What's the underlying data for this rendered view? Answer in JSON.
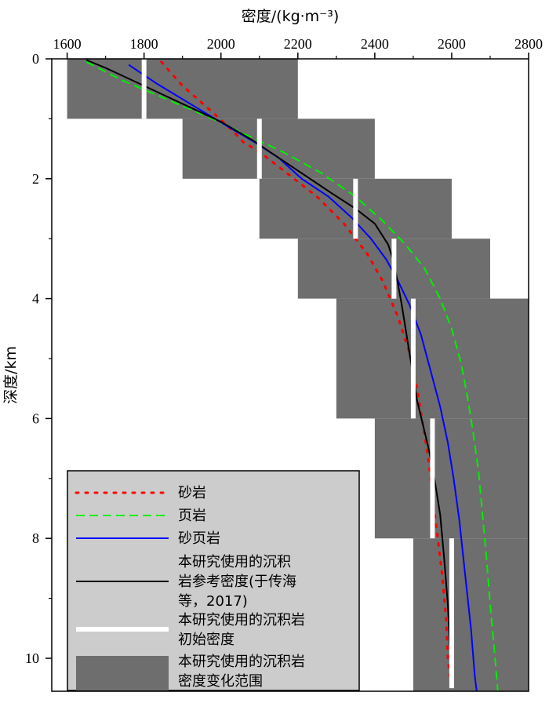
{
  "chart_data": {
    "type": "line",
    "title": "",
    "xlabel": "密度/(kg·m⁻³)",
    "ylabel": "深度/km",
    "xlim": [
      1560,
      2800
    ],
    "ylim": [
      0,
      10.55
    ],
    "x_ticks": [
      1600,
      1800,
      2000,
      2200,
      2400,
      2600,
      2800
    ],
    "y_ticks": [
      0,
      2,
      4,
      6,
      8,
      10
    ],
    "x_axis_position": "top",
    "legend_position": "bottom-left",
    "colors": {
      "sandstone": "#ff0000",
      "shale": "#00ee00",
      "sandy_shale": "#0000ff",
      "reference": "#000000",
      "initial_density": "#ffffff",
      "range_fill": "#6e6e6e",
      "legend_bg": "#cccccc"
    },
    "series": [
      {
        "name": "砂岩",
        "key": "sandstone",
        "style": "dotted",
        "points": [
          [
            1845,
            0.05
          ],
          [
            1900,
            0.45
          ],
          [
            1980,
            0.9
          ],
          [
            2030,
            1.2
          ],
          [
            2060,
            1.4
          ],
          [
            2100,
            1.55
          ],
          [
            2160,
            1.85
          ],
          [
            2250,
            2.3
          ],
          [
            2320,
            2.75
          ],
          [
            2380,
            3.25
          ],
          [
            2420,
            3.7
          ],
          [
            2460,
            4.3
          ],
          [
            2490,
            4.9
          ],
          [
            2510,
            5.5
          ],
          [
            2525,
            6.1
          ],
          [
            2540,
            6.7
          ],
          [
            2550,
            7.3
          ],
          [
            2560,
            7.8
          ],
          [
            2575,
            8.6
          ],
          [
            2585,
            9.3
          ],
          [
            2590,
            10.0
          ],
          [
            2595,
            10.3
          ]
        ]
      },
      {
        "name": "页岩",
        "key": "shale",
        "style": "dashed",
        "points": [
          [
            1650,
            0.05
          ],
          [
            1740,
            0.35
          ],
          [
            1850,
            0.65
          ],
          [
            1960,
            0.95
          ],
          [
            2060,
            1.25
          ],
          [
            2160,
            1.55
          ],
          [
            2260,
            1.9
          ],
          [
            2350,
            2.3
          ],
          [
            2420,
            2.7
          ],
          [
            2480,
            3.1
          ],
          [
            2530,
            3.5
          ],
          [
            2570,
            4.0
          ],
          [
            2600,
            4.5
          ],
          [
            2625,
            5.1
          ],
          [
            2640,
            5.6
          ],
          [
            2655,
            6.2
          ],
          [
            2670,
            6.9
          ],
          [
            2680,
            7.6
          ],
          [
            2690,
            8.3
          ],
          [
            2700,
            9.1
          ],
          [
            2710,
            9.8
          ],
          [
            2720,
            10.55
          ]
        ]
      },
      {
        "name": "砂页岩",
        "key": "sandy_shale",
        "style": "solid",
        "points": [
          [
            1760,
            0.1
          ],
          [
            1830,
            0.4
          ],
          [
            1920,
            0.75
          ],
          [
            2010,
            1.1
          ],
          [
            2090,
            1.4
          ],
          [
            2150,
            1.65
          ],
          [
            2210,
            2.0
          ],
          [
            2280,
            2.3
          ],
          [
            2340,
            2.65
          ],
          [
            2390,
            3.0
          ],
          [
            2430,
            3.35
          ],
          [
            2460,
            3.7
          ],
          [
            2490,
            4.1
          ],
          [
            2520,
            4.6
          ],
          [
            2545,
            5.2
          ],
          [
            2570,
            5.8
          ],
          [
            2590,
            6.4
          ],
          [
            2605,
            7.0
          ],
          [
            2620,
            7.7
          ],
          [
            2630,
            8.3
          ],
          [
            2640,
            8.9
          ],
          [
            2650,
            9.5
          ],
          [
            2660,
            10.3
          ],
          [
            2665,
            10.55
          ]
        ]
      },
      {
        "name": "本研究使用的沉积岩参考密度(于传海等，2017)",
        "key": "reference",
        "style": "solid",
        "points": [
          [
            1650,
            0.02
          ],
          [
            1700,
            0.15
          ],
          [
            1800,
            0.45
          ],
          [
            1900,
            0.75
          ],
          [
            2000,
            1.05
          ],
          [
            2080,
            1.35
          ],
          [
            2150,
            1.65
          ],
          [
            2220,
            1.95
          ],
          [
            2290,
            2.25
          ],
          [
            2350,
            2.5
          ],
          [
            2400,
            2.75
          ],
          [
            2420,
            2.95
          ],
          [
            2435,
            3.1
          ],
          [
            2450,
            3.4
          ],
          [
            2460,
            3.75
          ],
          [
            2470,
            4.1
          ],
          [
            2480,
            4.5
          ],
          [
            2490,
            4.9
          ],
          [
            2500,
            5.3
          ],
          [
            2510,
            5.7
          ],
          [
            2525,
            6.1
          ],
          [
            2540,
            6.5
          ],
          [
            2555,
            7.0
          ],
          [
            2570,
            7.6
          ],
          [
            2580,
            8.3
          ],
          [
            2590,
            9.1
          ],
          [
            2595,
            9.8
          ]
        ]
      }
    ],
    "initial_density": {
      "name": "本研究使用的沉积岩初始密度",
      "segments": [
        {
          "x": 1800,
          "y0": 0.0,
          "y1": 1.0
        },
        {
          "x": 2100,
          "y0": 1.0,
          "y1": 2.0
        },
        {
          "x": 2350,
          "y0": 2.0,
          "y1": 3.0
        },
        {
          "x": 2450,
          "y0": 3.0,
          "y1": 4.0
        },
        {
          "x": 2500,
          "y0": 4.0,
          "y1": 6.0
        },
        {
          "x": 2550,
          "y0": 6.0,
          "y1": 8.0
        },
        {
          "x": 2600,
          "y0": 8.0,
          "y1": 10.5
        }
      ]
    },
    "density_range": {
      "name": "本研究使用的沉积岩密度变化范围",
      "blocks": [
        {
          "x0": 1600,
          "x1": 2200,
          "y0": 0.0,
          "y1": 1.0
        },
        {
          "x0": 1900,
          "x1": 2400,
          "y0": 1.0,
          "y1": 2.0
        },
        {
          "x0": 2100,
          "x1": 2600,
          "y0": 2.0,
          "y1": 3.0
        },
        {
          "x0": 2200,
          "x1": 2700,
          "y0": 3.0,
          "y1": 4.0
        },
        {
          "x0": 2300,
          "x1": 2800,
          "y0": 4.0,
          "y1": 6.0
        },
        {
          "x0": 2400,
          "x1": 2800,
          "y0": 6.0,
          "y1": 8.0
        },
        {
          "x0": 2500,
          "x1": 2800,
          "y0": 8.0,
          "y1": 10.55
        }
      ]
    },
    "legend": [
      {
        "key": "sandstone",
        "lines": [
          "砂岩"
        ]
      },
      {
        "key": "shale",
        "lines": [
          "页岩"
        ]
      },
      {
        "key": "sandy_shale",
        "lines": [
          "砂页岩"
        ]
      },
      {
        "key": "reference",
        "lines": [
          "本研究使用的沉积",
          "岩参考密度(于传海",
          "等，2017)"
        ]
      },
      {
        "key": "initial_density",
        "lines": [
          "本研究使用的沉积岩",
          "初始密度"
        ]
      },
      {
        "key": "range_fill",
        "lines": [
          "本研究使用的沉积岩",
          "密度变化范围"
        ]
      }
    ]
  }
}
